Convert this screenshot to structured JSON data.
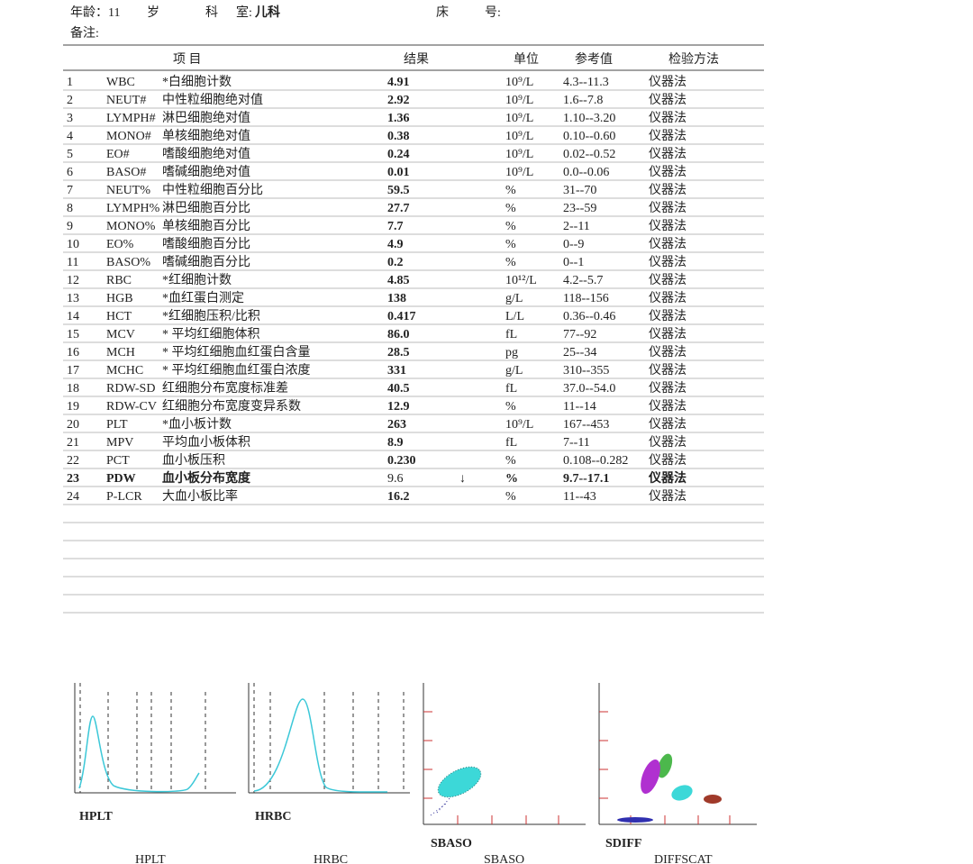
{
  "header": {
    "age_label": "年龄：11",
    "age_unit": "岁",
    "dept_label_1": "科",
    "dept_label_2": "室:",
    "dept": "儿科",
    "bed_label_1": "床",
    "bed_label_2": "号:",
    "remark_label": "备注:"
  },
  "table": {
    "columns": {
      "item": "项 目",
      "result": "结果",
      "unit": "单位",
      "ref": "参考值",
      "method": "检验方法"
    },
    "rows": [
      {
        "no": "1",
        "code": "WBC",
        "name": "*白细胞计数",
        "result": "4.91",
        "unit": "10⁹/L",
        "ref": "4.3--11.3",
        "method": "仪器法"
      },
      {
        "no": "2",
        "code": "NEUT#",
        "name": "中性粒细胞绝对值",
        "result": "2.92",
        "unit": "10⁹/L",
        "ref": "1.6--7.8",
        "method": "仪器法"
      },
      {
        "no": "3",
        "code": "LYMPH#",
        "name": "淋巴细胞绝对值",
        "result": "1.36",
        "unit": "10⁹/L",
        "ref": "1.10--3.20",
        "method": "仪器法"
      },
      {
        "no": "4",
        "code": "MONO#",
        "name": "单核细胞绝对值",
        "result": "0.38",
        "unit": "10⁹/L",
        "ref": "0.10--0.60",
        "method": "仪器法"
      },
      {
        "no": "5",
        "code": "EO#",
        "name": "嗜酸细胞绝对值",
        "result": "0.24",
        "unit": "10⁹/L",
        "ref": "0.02--0.52",
        "method": "仪器法"
      },
      {
        "no": "6",
        "code": "BASO#",
        "name": "嗜碱细胞绝对值",
        "result": "0.01",
        "unit": "10⁹/L",
        "ref": "0.0--0.06",
        "method": "仪器法"
      },
      {
        "no": "7",
        "code": "NEUT%",
        "name": "中性粒细胞百分比",
        "result": "59.5",
        "unit": "%",
        "ref": "31--70",
        "method": "仪器法"
      },
      {
        "no": "8",
        "code": "LYMPH%",
        "name": "淋巴细胞百分比",
        "result": "27.7",
        "unit": "%",
        "ref": "23--59",
        "method": "仪器法"
      },
      {
        "no": "9",
        "code": "MONO%",
        "name": "单核细胞百分比",
        "result": "7.7",
        "unit": "%",
        "ref": "2--11",
        "method": "仪器法"
      },
      {
        "no": "10",
        "code": "EO%",
        "name": "嗜酸细胞百分比",
        "result": "4.9",
        "unit": "%",
        "ref": "0--9",
        "method": "仪器法"
      },
      {
        "no": "11",
        "code": "BASO%",
        "name": "嗜碱细胞百分比",
        "result": "0.2",
        "unit": "%",
        "ref": "0--1",
        "method": "仪器法"
      },
      {
        "no": "12",
        "code": "RBC",
        "name": "*红细胞计数",
        "result": "4.85",
        "unit": "10¹²/L",
        "ref": "4.2--5.7",
        "method": "仪器法"
      },
      {
        "no": "13",
        "code": "HGB",
        "name": "*血红蛋白测定",
        "result": "138",
        "unit": "g/L",
        "ref": "118--156",
        "method": "仪器法"
      },
      {
        "no": "14",
        "code": "HCT",
        "name": "*红细胞压积/比积",
        "result": "0.417",
        "unit": "L/L",
        "ref": "0.36--0.46",
        "method": "仪器法"
      },
      {
        "no": "15",
        "code": "MCV",
        "name": "* 平均红细胞体积",
        "result": "86.0",
        "unit": "fL",
        "ref": "77--92",
        "method": "仪器法"
      },
      {
        "no": "16",
        "code": "MCH",
        "name": "* 平均红细胞血红蛋白含量",
        "result": "28.5",
        "unit": "pg",
        "ref": "25--34",
        "method": "仪器法"
      },
      {
        "no": "17",
        "code": "MCHC",
        "name": "* 平均红细胞血红蛋白浓度",
        "result": "331",
        "unit": "g/L",
        "ref": "310--355",
        "method": "仪器法"
      },
      {
        "no": "18",
        "code": "RDW-SD",
        "name": "红细胞分布宽度标准差",
        "result": "40.5",
        "unit": "fL",
        "ref": "37.0--54.0",
        "method": "仪器法"
      },
      {
        "no": "19",
        "code": "RDW-CV",
        "name": "红细胞分布宽度变异系数",
        "result": "12.9",
        "unit": "%",
        "ref": "11--14",
        "method": "仪器法"
      },
      {
        "no": "20",
        "code": "PLT",
        "name": "*血小板计数",
        "result": "263",
        "unit": "10⁹/L",
        "ref": "167--453",
        "method": "仪器法"
      },
      {
        "no": "21",
        "code": "MPV",
        "name": "平均血小板体积",
        "result": "8.9",
        "unit": "fL",
        "ref": "7--11",
        "method": "仪器法"
      },
      {
        "no": "22",
        "code": "PCT",
        "name": "血小板压积",
        "result": "0.230",
        "unit": "%",
        "ref": "0.108--0.282",
        "method": "仪器法"
      },
      {
        "no": "23",
        "code": "PDW",
        "name": "血小板分布宽度",
        "result": "9.6",
        "flag": "↓",
        "unit": "%",
        "ref": "9.7--17.1",
        "method": "仪器法"
      },
      {
        "no": "24",
        "code": "P-LCR",
        "name": "大血小板比率",
        "result": "16.2",
        "unit": "%",
        "ref": "11--43",
        "method": "仪器法"
      }
    ]
  },
  "graphs": [
    {
      "label": "HPLT",
      "caption": "HPLT"
    },
    {
      "label": "HRBC",
      "caption": "HRBC"
    },
    {
      "label": "SBASO",
      "caption": "SBASO"
    },
    {
      "label": "SDIFF",
      "caption": "DIFFSCAT"
    }
  ]
}
